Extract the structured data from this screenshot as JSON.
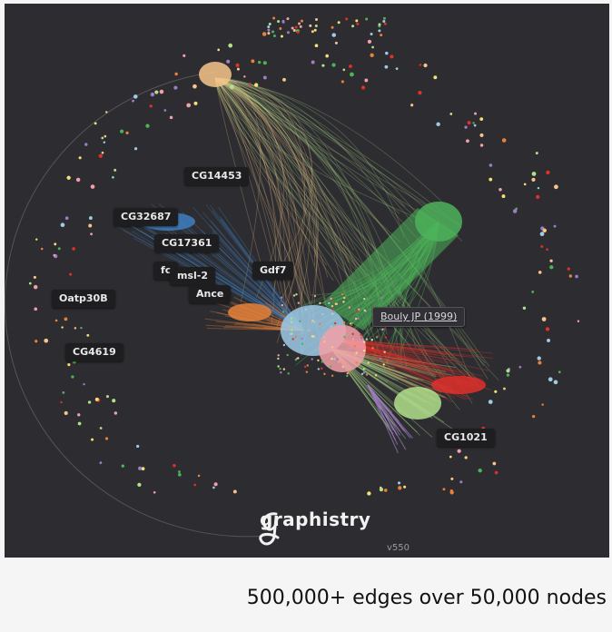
{
  "graph": {
    "background": "#2d2d31",
    "labels": {
      "cg14453": "CG14453",
      "cg32687": "CG32687",
      "cg17361": "CG17361",
      "fc": "fc",
      "msl2": "msl-2",
      "gdf7": "Gdf7",
      "ance": "Ance",
      "oatp30b": "Oatp30B",
      "cg4619": "CG4619",
      "bouly": "Bouly JP (1999)",
      "cg1021": "CG1021"
    },
    "cluster_colors": {
      "orange_top": "#f6c58a",
      "green": "#4db35a",
      "blue": "#3f7fc0",
      "orange": "#e8823a",
      "light_blue": "#9ecbe6",
      "pink": "#f2a0a8",
      "red": "#e0302a",
      "light_green": "#b3e08c",
      "purple": "#a07cc8"
    }
  },
  "brand": {
    "name": "graphistry",
    "version": "v550"
  },
  "caption": "500,000+ edges over 50,000 nodes"
}
